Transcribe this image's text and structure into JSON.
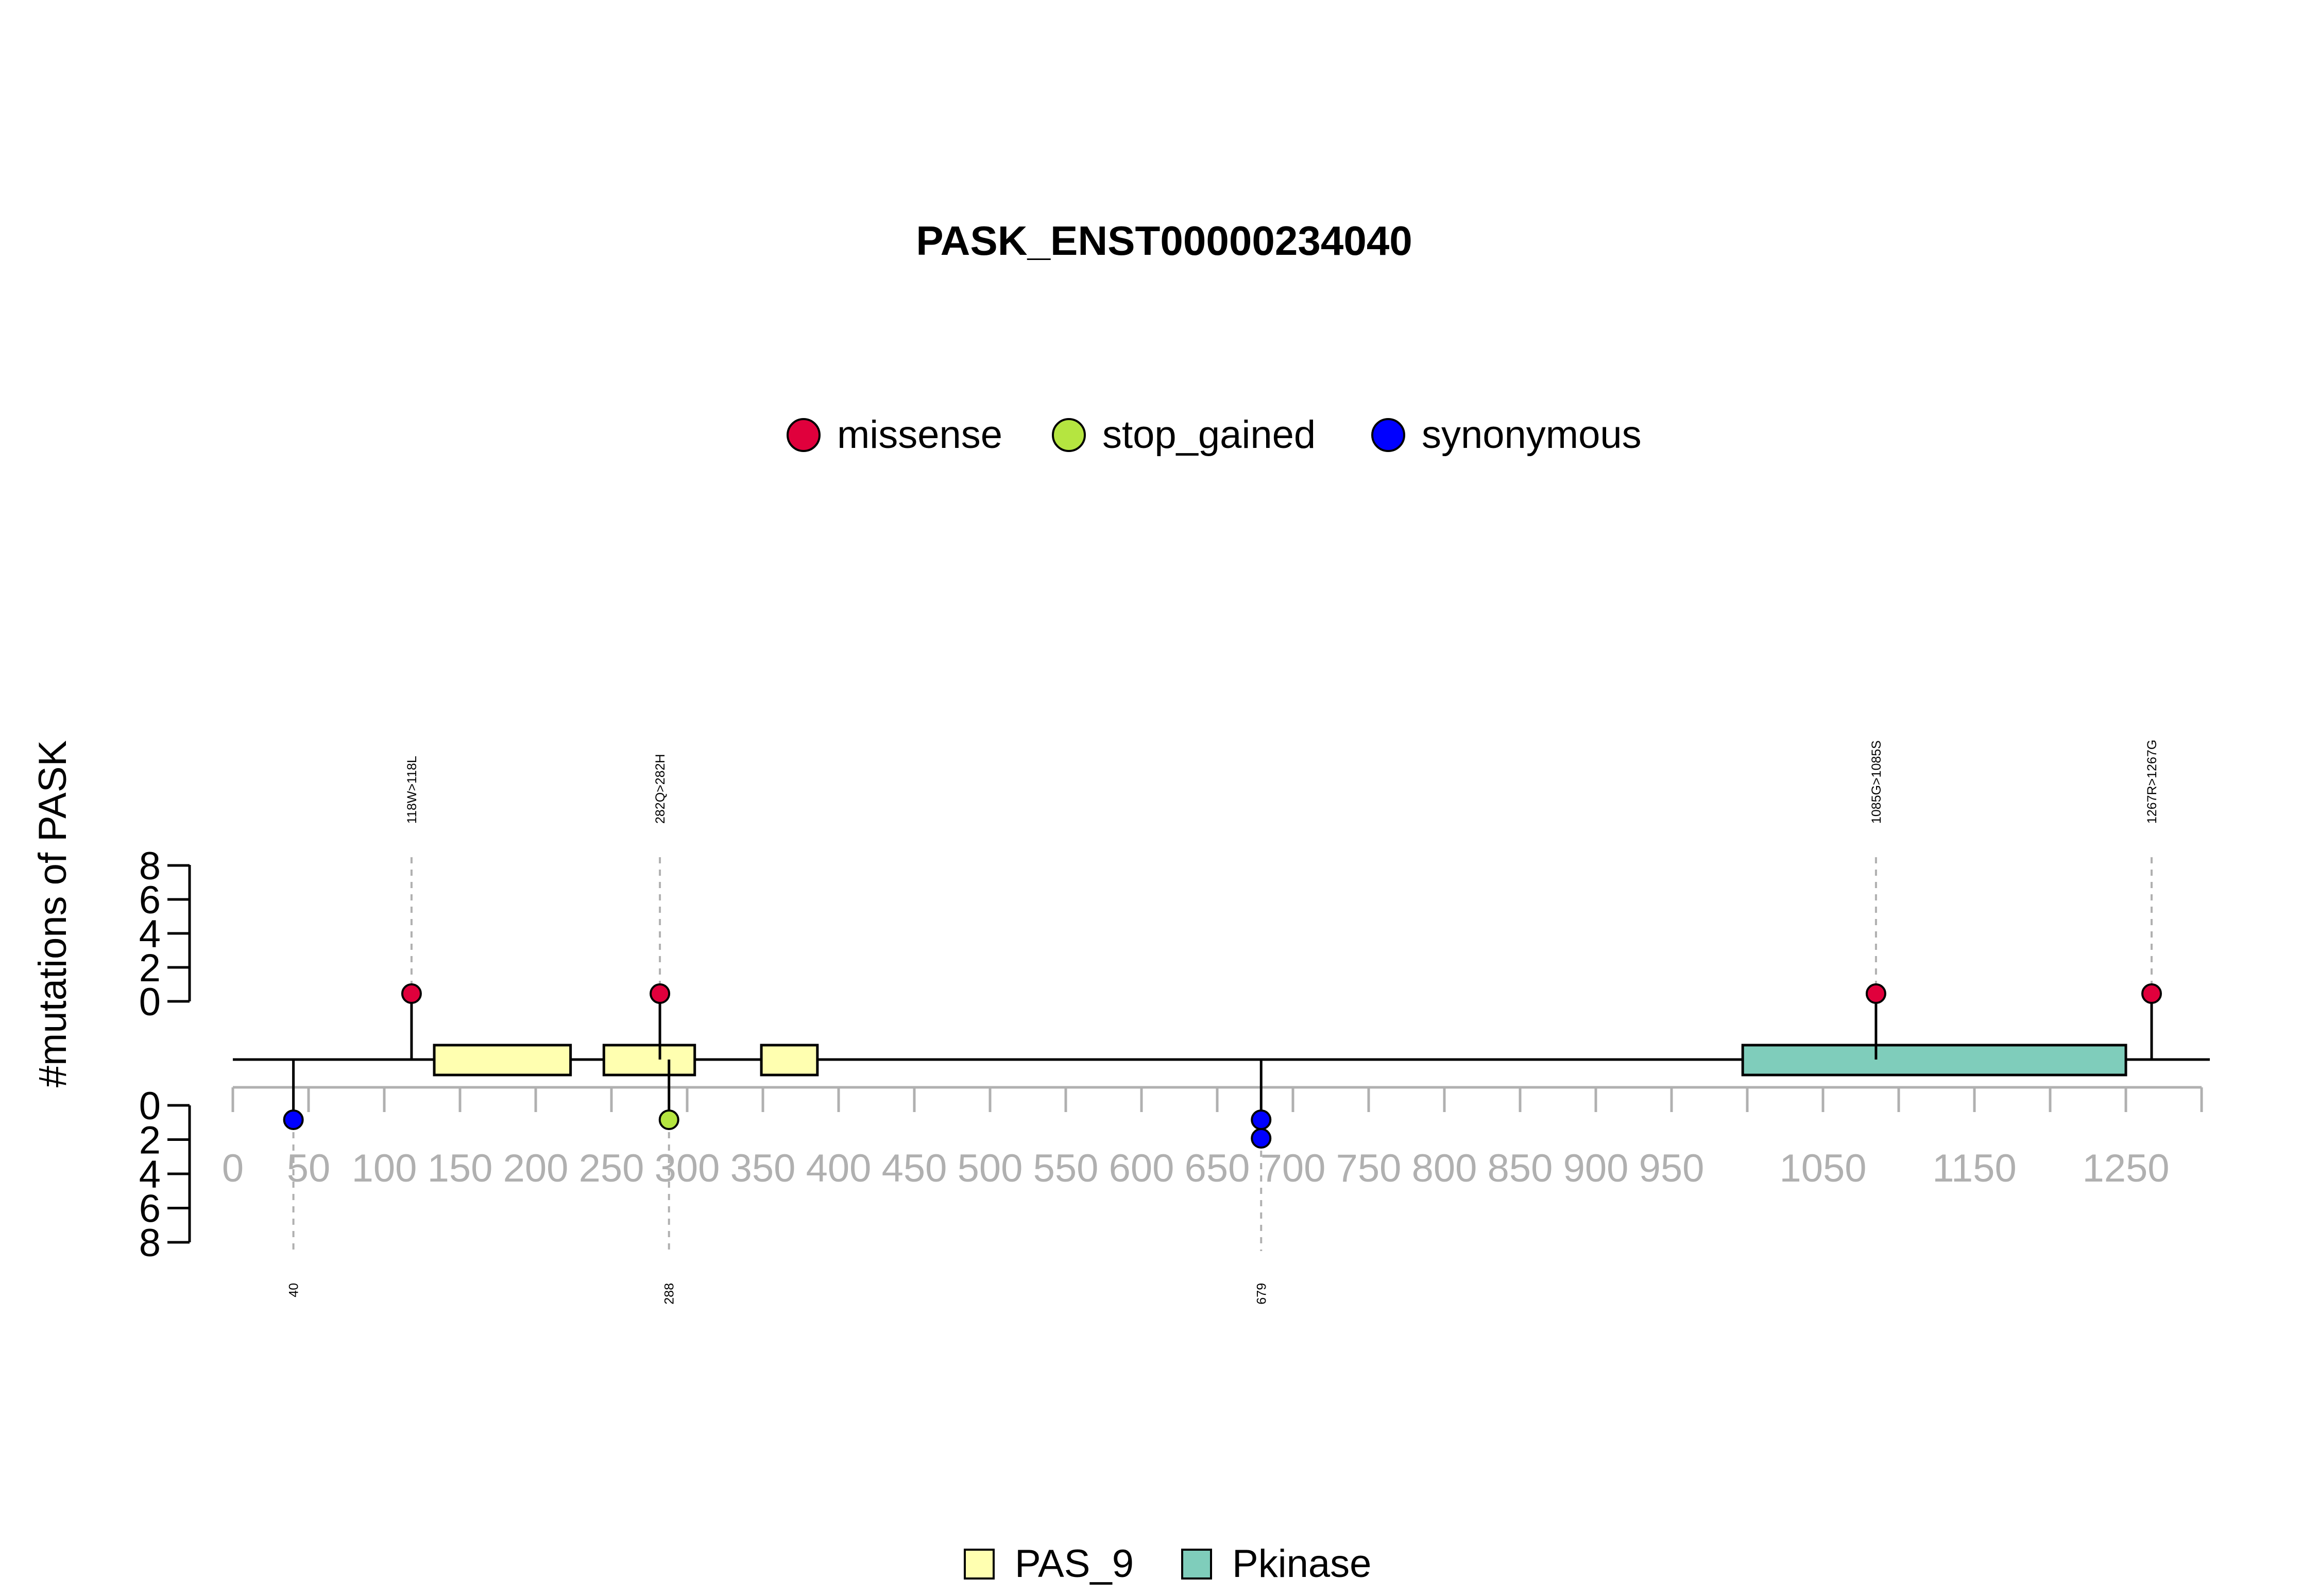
{
  "chart_data": {
    "type": "lollipop",
    "title": "PASK_ENST00000234040",
    "ylabel": "#mutations of PASK",
    "protein_length": 1323,
    "x_ticks": [
      0,
      50,
      100,
      150,
      200,
      250,
      300,
      350,
      400,
      450,
      500,
      550,
      600,
      650,
      700,
      750,
      800,
      850,
      900,
      950,
      1000,
      1050,
      1100,
      1150,
      1200,
      1250,
      1300
    ],
    "x_tick_labels": [
      {
        "value": 0,
        "label": "0"
      },
      {
        "value": 50,
        "label": "50"
      },
      {
        "value": 100,
        "label": "100"
      },
      {
        "value": 150,
        "label": "150"
      },
      {
        "value": 200,
        "label": "200"
      },
      {
        "value": 250,
        "label": "250"
      },
      {
        "value": 300,
        "label": "300"
      },
      {
        "value": 350,
        "label": "350"
      },
      {
        "value": 400,
        "label": "400"
      },
      {
        "value": 450,
        "label": "450"
      },
      {
        "value": 500,
        "label": "500"
      },
      {
        "value": 550,
        "label": "550"
      },
      {
        "value": 600,
        "label": "600"
      },
      {
        "value": 650,
        "label": "650"
      },
      {
        "value": 700,
        "label": "700"
      },
      {
        "value": 750,
        "label": "750"
      },
      {
        "value": 800,
        "label": "800"
      },
      {
        "value": 850,
        "label": "850"
      },
      {
        "value": 900,
        "label": "900"
      },
      {
        "value": 950,
        "label": "950"
      },
      {
        "value": 1050,
        "label": "1050"
      },
      {
        "value": 1150,
        "label": "1150"
      },
      {
        "value": 1250,
        "label": "1250"
      }
    ],
    "y_ticks_upper": [
      "0",
      "2",
      "4",
      "6",
      "8"
    ],
    "y_ticks_lower": [
      "0",
      "2",
      "4",
      "6",
      "8"
    ],
    "mutation_legend": [
      {
        "name": "missense",
        "color": "#e0003c"
      },
      {
        "name": "stop_gained",
        "color": "#b5e540"
      },
      {
        "name": "synonymous",
        "color": "#0000ff"
      }
    ],
    "domain_legend": [
      {
        "name": "PAS_9",
        "color": "#ffffb0"
      },
      {
        "name": "Pkinase",
        "color": "#7fcdbb"
      }
    ],
    "domains": [
      {
        "name": "PAS_9",
        "start": 133,
        "end": 223
      },
      {
        "name": "PAS_9",
        "start": 245,
        "end": 305
      },
      {
        "name": "PAS_9",
        "start": 349,
        "end": 386
      },
      {
        "name": "Pkinase",
        "start": 997,
        "end": 1250
      }
    ],
    "mutations_upper": [
      {
        "position": 118,
        "label": "118W>118L",
        "type": "missense",
        "count": 1
      },
      {
        "position": 282,
        "label": "282Q>282H",
        "type": "missense",
        "count": 1
      },
      {
        "position": 1085,
        "label": "1085G>1085S",
        "type": "missense",
        "count": 1
      },
      {
        "position": 1267,
        "label": "1267R>1267G",
        "type": "missense",
        "count": 1
      }
    ],
    "mutations_lower": [
      {
        "position": 40,
        "label": "40",
        "type": "synonymous",
        "count": 1
      },
      {
        "position": 288,
        "label": "288",
        "type": "stop_gained",
        "count": 1
      },
      {
        "position": 679,
        "label": "679",
        "type": "synonymous",
        "count": 2
      }
    ]
  }
}
